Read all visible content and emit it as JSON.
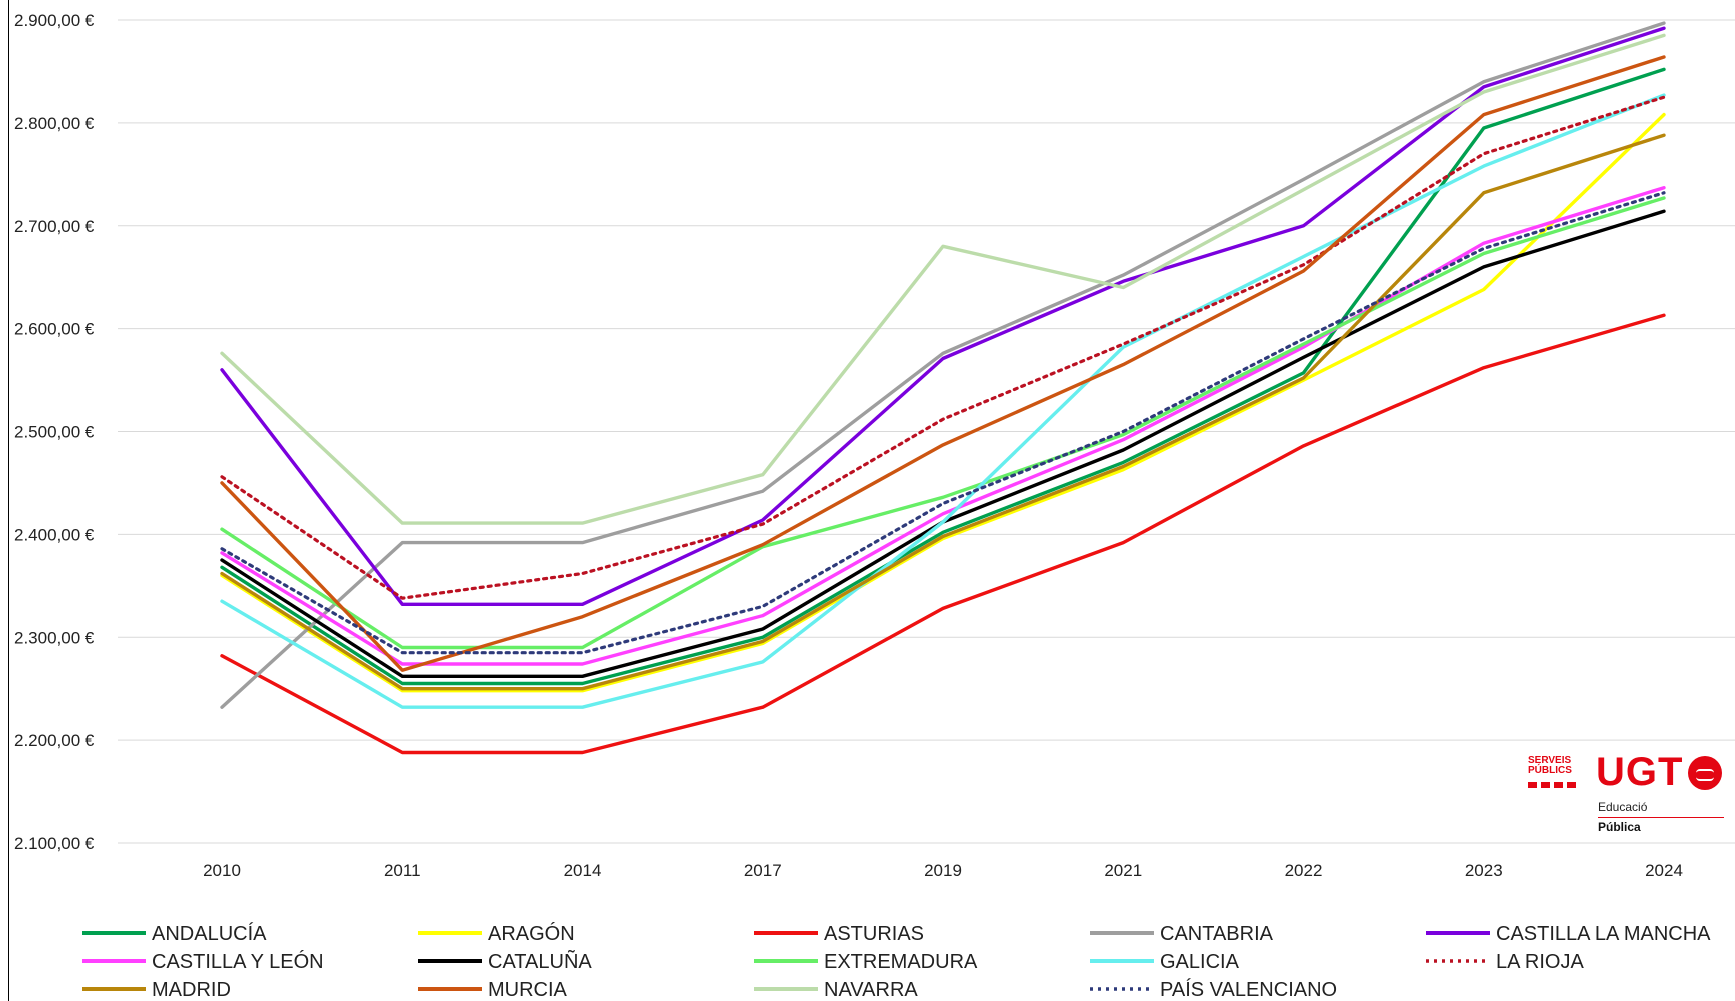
{
  "chart_data": {
    "type": "line",
    "categories": [
      "2010",
      "2011",
      "2014",
      "2017",
      "2019",
      "2021",
      "2022",
      "2023",
      "2024"
    ],
    "ylim": [
      2100,
      2900
    ],
    "yticks": [
      "2.100,00 €",
      "2.200,00 €",
      "2.300,00 €",
      "2.400,00 €",
      "2.500,00 €",
      "2.600,00 €",
      "2.700,00 €",
      "2.800,00 €",
      "2.900,00 €"
    ],
    "grid": "horizontal",
    "legend_position": "bottom",
    "series": [
      {
        "name": "ANDALUCÍA",
        "color": "#00a050",
        "dash": "solid",
        "values": [
          2368,
          2255,
          2255,
          2300,
          2402,
          2470,
          2557,
          2795,
          2852
        ]
      },
      {
        "name": "ARAGÓN",
        "color": "#ffff00",
        "dash": "solid",
        "values": [
          2360,
          2248,
          2248,
          2294,
          2396,
          2463,
          2550,
          2638,
          2808
        ]
      },
      {
        "name": "ASTURIAS",
        "color": "#ee1111",
        "dash": "solid",
        "values": [
          2282,
          2188,
          2188,
          2232,
          2328,
          2392,
          2486,
          2562,
          2613
        ]
      },
      {
        "name": "CANTABRIA",
        "color": "#9e9e9e",
        "dash": "solid",
        "values": [
          2232,
          2392,
          2392,
          2442,
          2576,
          2652,
          2745,
          2840,
          2897
        ]
      },
      {
        "name": "CASTILLA LA MANCHA",
        "color": "#7a00dd",
        "dash": "solid",
        "values": [
          2560,
          2332,
          2332,
          2414,
          2571,
          2646,
          2700,
          2835,
          2892
        ]
      },
      {
        "name": "CASTILLA Y LEÓN",
        "color": "#ff40ff",
        "dash": "solid",
        "values": [
          2382,
          2274,
          2274,
          2321,
          2420,
          2492,
          2582,
          2683,
          2737
        ]
      },
      {
        "name": "CATALUÑA",
        "color": "#000000",
        "dash": "solid",
        "values": [
          2375,
          2262,
          2262,
          2308,
          2412,
          2482,
          2572,
          2660,
          2714
        ]
      },
      {
        "name": "EXTREMADURA",
        "color": "#66ee66",
        "dash": "solid",
        "values": [
          2405,
          2290,
          2290,
          2388,
          2436,
          2497,
          2585,
          2673,
          2727
        ]
      },
      {
        "name": "GALICIA",
        "color": "#66eeee",
        "dash": "solid",
        "values": [
          2335,
          2232,
          2232,
          2276,
          2412,
          2582,
          2670,
          2758,
          2827
        ]
      },
      {
        "name": "LA RIOJA",
        "color": "#bb1122",
        "dash": "dotted",
        "values": [
          2456,
          2338,
          2362,
          2410,
          2512,
          2585,
          2662,
          2770,
          2825
        ]
      },
      {
        "name": "MADRID",
        "color": "#b8860b",
        "dash": "solid",
        "values": [
          2362,
          2250,
          2250,
          2296,
          2398,
          2466,
          2552,
          2732,
          2788
        ]
      },
      {
        "name": "MURCIA",
        "color": "#cc5511",
        "dash": "solid",
        "values": [
          2450,
          2268,
          2320,
          2390,
          2487,
          2565,
          2656,
          2808,
          2864
        ]
      },
      {
        "name": "NAVARRA",
        "color": "#bcdcaa",
        "dash": "solid",
        "values": [
          2576,
          2411,
          2411,
          2458,
          2680,
          2640,
          2735,
          2830,
          2885
        ]
      },
      {
        "name": "PAÍS VALENCIANO",
        "color": "#2e3a7a",
        "dash": "dotted",
        "values": [
          2386,
          2285,
          2285,
          2330,
          2430,
          2500,
          2590,
          2678,
          2732
        ]
      }
    ]
  },
  "logo": {
    "serveis": "SERVEIS",
    "publics": "PÚBLICS",
    "ugt": "UGT",
    "educacio": "Educació",
    "publica": "Pública"
  }
}
